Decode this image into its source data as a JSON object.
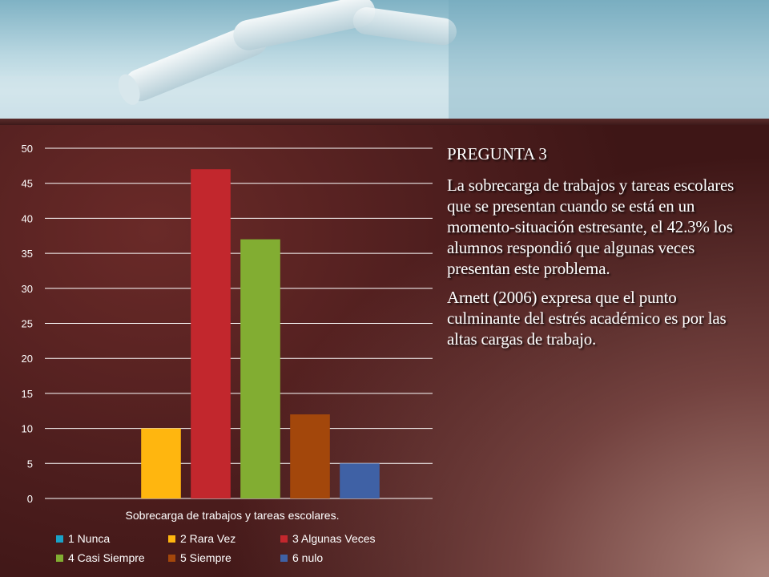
{
  "slide": {
    "heading": "PREGUNTA 3",
    "paragraph1": "La sobrecarga de trabajos y tareas escolares que se presentan cuando se está en un momento-situación estresante, el 42.3% los alumnos respondió que algunas veces presentan este problema.",
    "paragraph2": "Arnett (2006) expresa que el punto culminante del estrés académico es por las altas cargas de trabajo."
  },
  "chart_data": {
    "type": "bar",
    "title": "",
    "xlabel": "Sobrecarga de trabajos y tareas escolares.",
    "ylabel": "",
    "ylim": [
      0,
      50
    ],
    "yticks": [
      0,
      5,
      10,
      15,
      20,
      25,
      30,
      35,
      40,
      45,
      50
    ],
    "grid": true,
    "legend_position": "bottom",
    "categories": [
      "Sobrecarga de trabajos y tareas escolares."
    ],
    "series": [
      {
        "name": "1 Nunca",
        "values": [
          0
        ],
        "color": "#1aa2c7"
      },
      {
        "name": "2 Rara Vez",
        "values": [
          10
        ],
        "color": "#ffb60f"
      },
      {
        "name": "3 Algunas Veces",
        "values": [
          47
        ],
        "color": "#c2272d"
      },
      {
        "name": "4 Casi Siempre",
        "values": [
          37
        ],
        "color": "#82ad32"
      },
      {
        "name": "5 Siempre",
        "values": [
          12
        ],
        "color": "#a3470b"
      },
      {
        "name": "6 nulo",
        "values": [
          5
        ],
        "color": "#3f61a5"
      }
    ]
  }
}
